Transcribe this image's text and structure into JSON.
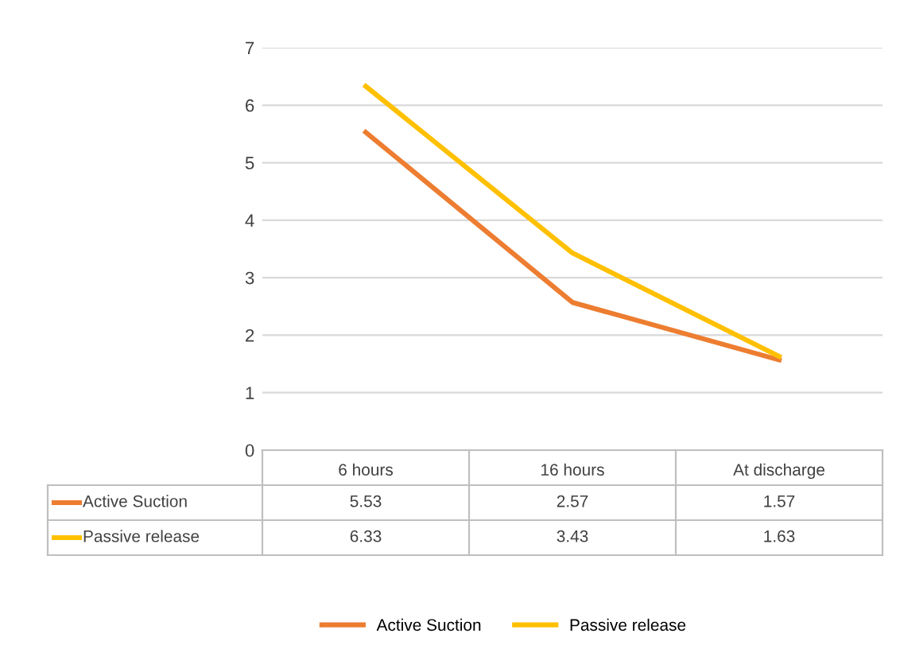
{
  "chart_data": {
    "type": "line",
    "categories": [
      "6 hours",
      "16 hours",
      "At discharge"
    ],
    "series": [
      {
        "name": "Active Suction",
        "color": "#ed7d31",
        "values": [
          5.53,
          2.57,
          1.57
        ]
      },
      {
        "name": "Passive release",
        "color": "#ffc000",
        "values": [
          6.33,
          3.43,
          1.63
        ]
      }
    ],
    "ylim": [
      0,
      7
    ],
    "yticks": [
      0,
      1,
      2,
      3,
      4,
      5,
      6,
      7
    ],
    "grid": "y",
    "legend": "bottom",
    "data_labels": true,
    "marker": "none",
    "line_style": "solid"
  }
}
